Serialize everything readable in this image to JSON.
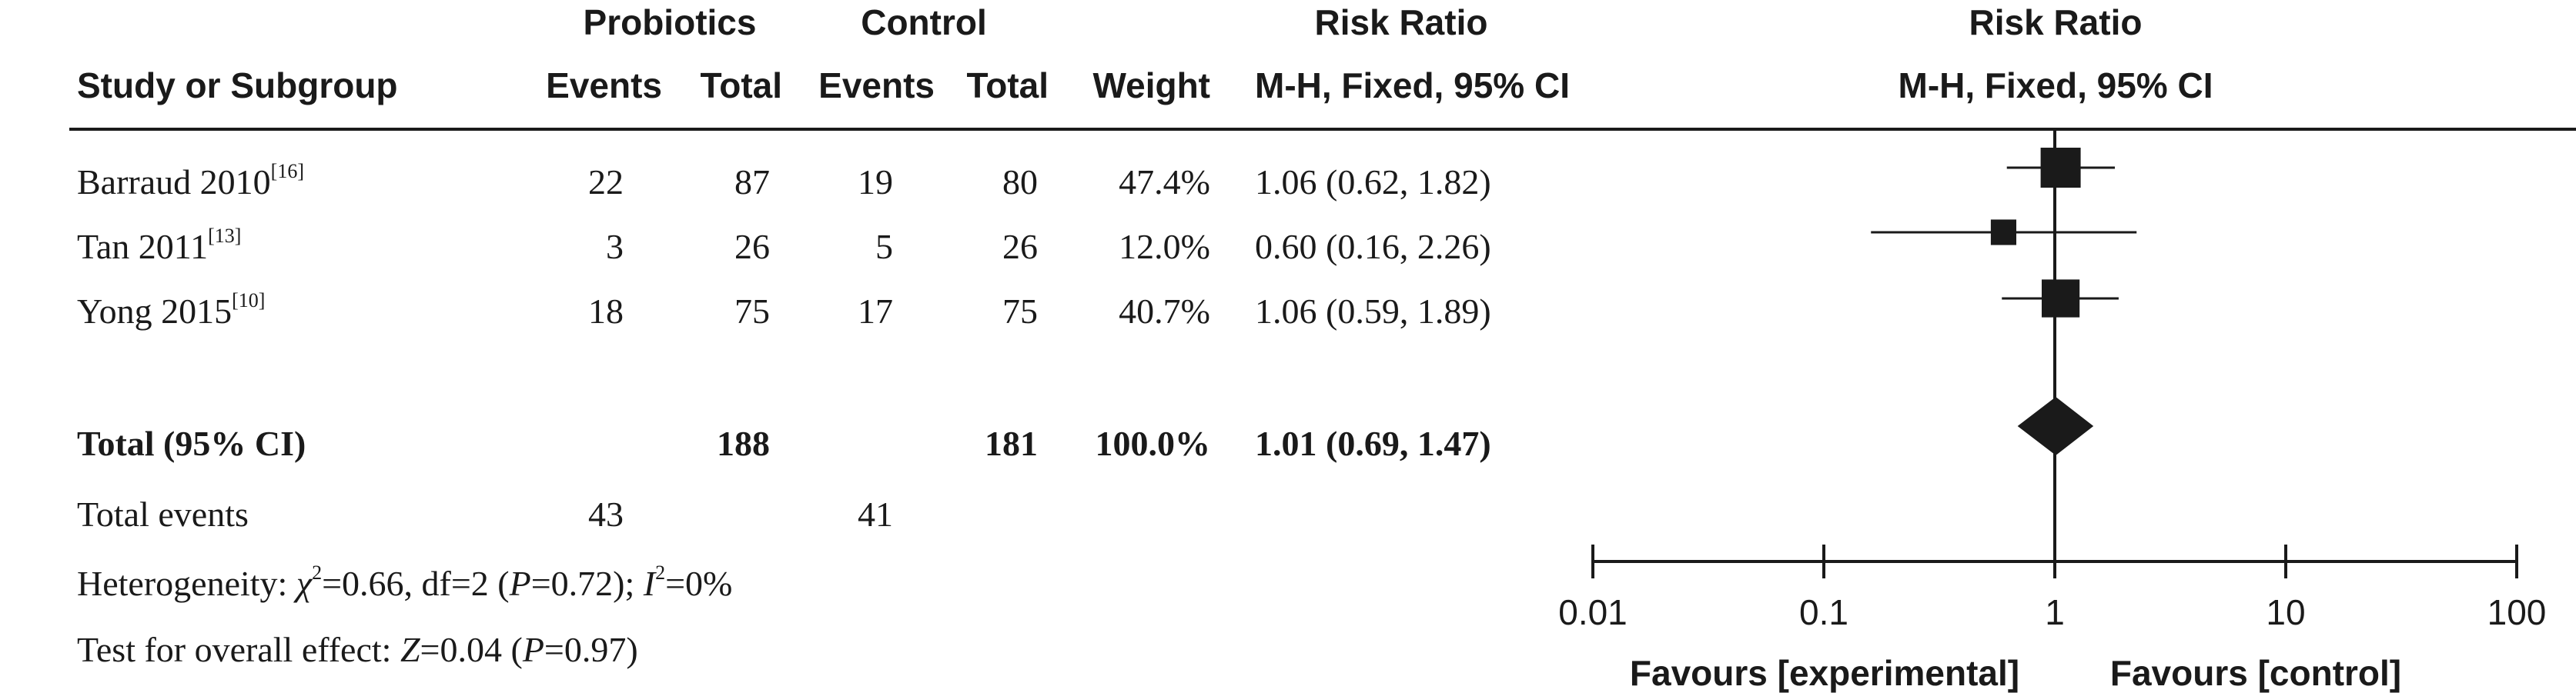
{
  "header": {
    "group1": "Probiotics",
    "group2": "Control",
    "rr_label": "Risk Ratio",
    "plot_rr_label": "Risk Ratio",
    "study_col": "Study or Subgroup",
    "events1": "Events",
    "total1": "Total",
    "events2": "Events",
    "total2": "Total",
    "weight": "Weight",
    "method": "M-H, Fixed, 95% CI",
    "plot_method": "M-H, Fixed, 95% CI"
  },
  "studies": [
    {
      "name": "Barraud 2010",
      "ref": "[16]",
      "e1": "22",
      "t1": "87",
      "e2": "19",
      "t2": "80",
      "weight": "47.4%",
      "ci": "1.06 (0.62, 1.82)"
    },
    {
      "name": "Tan 2011",
      "ref": "[13]",
      "e1": "3",
      "t1": "26",
      "e2": "5",
      "t2": "26",
      "weight": "12.0%",
      "ci": "0.60 (0.16, 2.26)"
    },
    {
      "name": "Yong 2015",
      "ref": "[10]",
      "e1": "18",
      "t1": "75",
      "e2": "17",
      "t2": "75",
      "weight": "40.7%",
      "ci": "1.06 (0.59, 1.89)"
    }
  ],
  "total": {
    "label": "Total (95% CI)",
    "t1": "188",
    "t2": "181",
    "weight": "100.0%",
    "ci": "1.01 (0.69, 1.47)"
  },
  "events": {
    "label": "Total events",
    "e1": "43",
    "e2": "41"
  },
  "heterogeneity": {
    "prefix": "Heterogeneity: ",
    "chi": "χ",
    "chi_rest": "=0.66, df=2 (",
    "p": "P",
    "p_rest": "=0.72); ",
    "i": "I",
    "i_rest": "=0%"
  },
  "overall": {
    "prefix": "Test for overall effect: ",
    "z": "Z",
    "z_rest": "=0.04 (",
    "p": "P",
    "p_rest": "=0.97)"
  },
  "favours": {
    "left": "Favours [experimental]",
    "right": "Favours [control]"
  },
  "chart_data": {
    "type": "forest",
    "x_scale": "log",
    "xlim": [
      0.01,
      100
    ],
    "ticks": [
      0.01,
      0.1,
      1,
      10,
      100
    ],
    "tick_labels": [
      "0.01",
      "0.1",
      "1",
      "10",
      "100"
    ],
    "null_value": 1,
    "points": [
      {
        "study": "Barraud 2010",
        "rr": 1.06,
        "lo": 0.62,
        "hi": 1.82,
        "weight": 47.4
      },
      {
        "study": "Tan 2011",
        "rr": 0.6,
        "lo": 0.16,
        "hi": 2.26,
        "weight": 12.0
      },
      {
        "study": "Yong 2015",
        "rr": 1.06,
        "lo": 0.59,
        "hi": 1.89,
        "weight": 40.7
      }
    ],
    "pooled": {
      "rr": 1.01,
      "lo": 0.69,
      "hi": 1.47
    },
    "colors": {
      "ink": "#1a1a1a"
    }
  }
}
